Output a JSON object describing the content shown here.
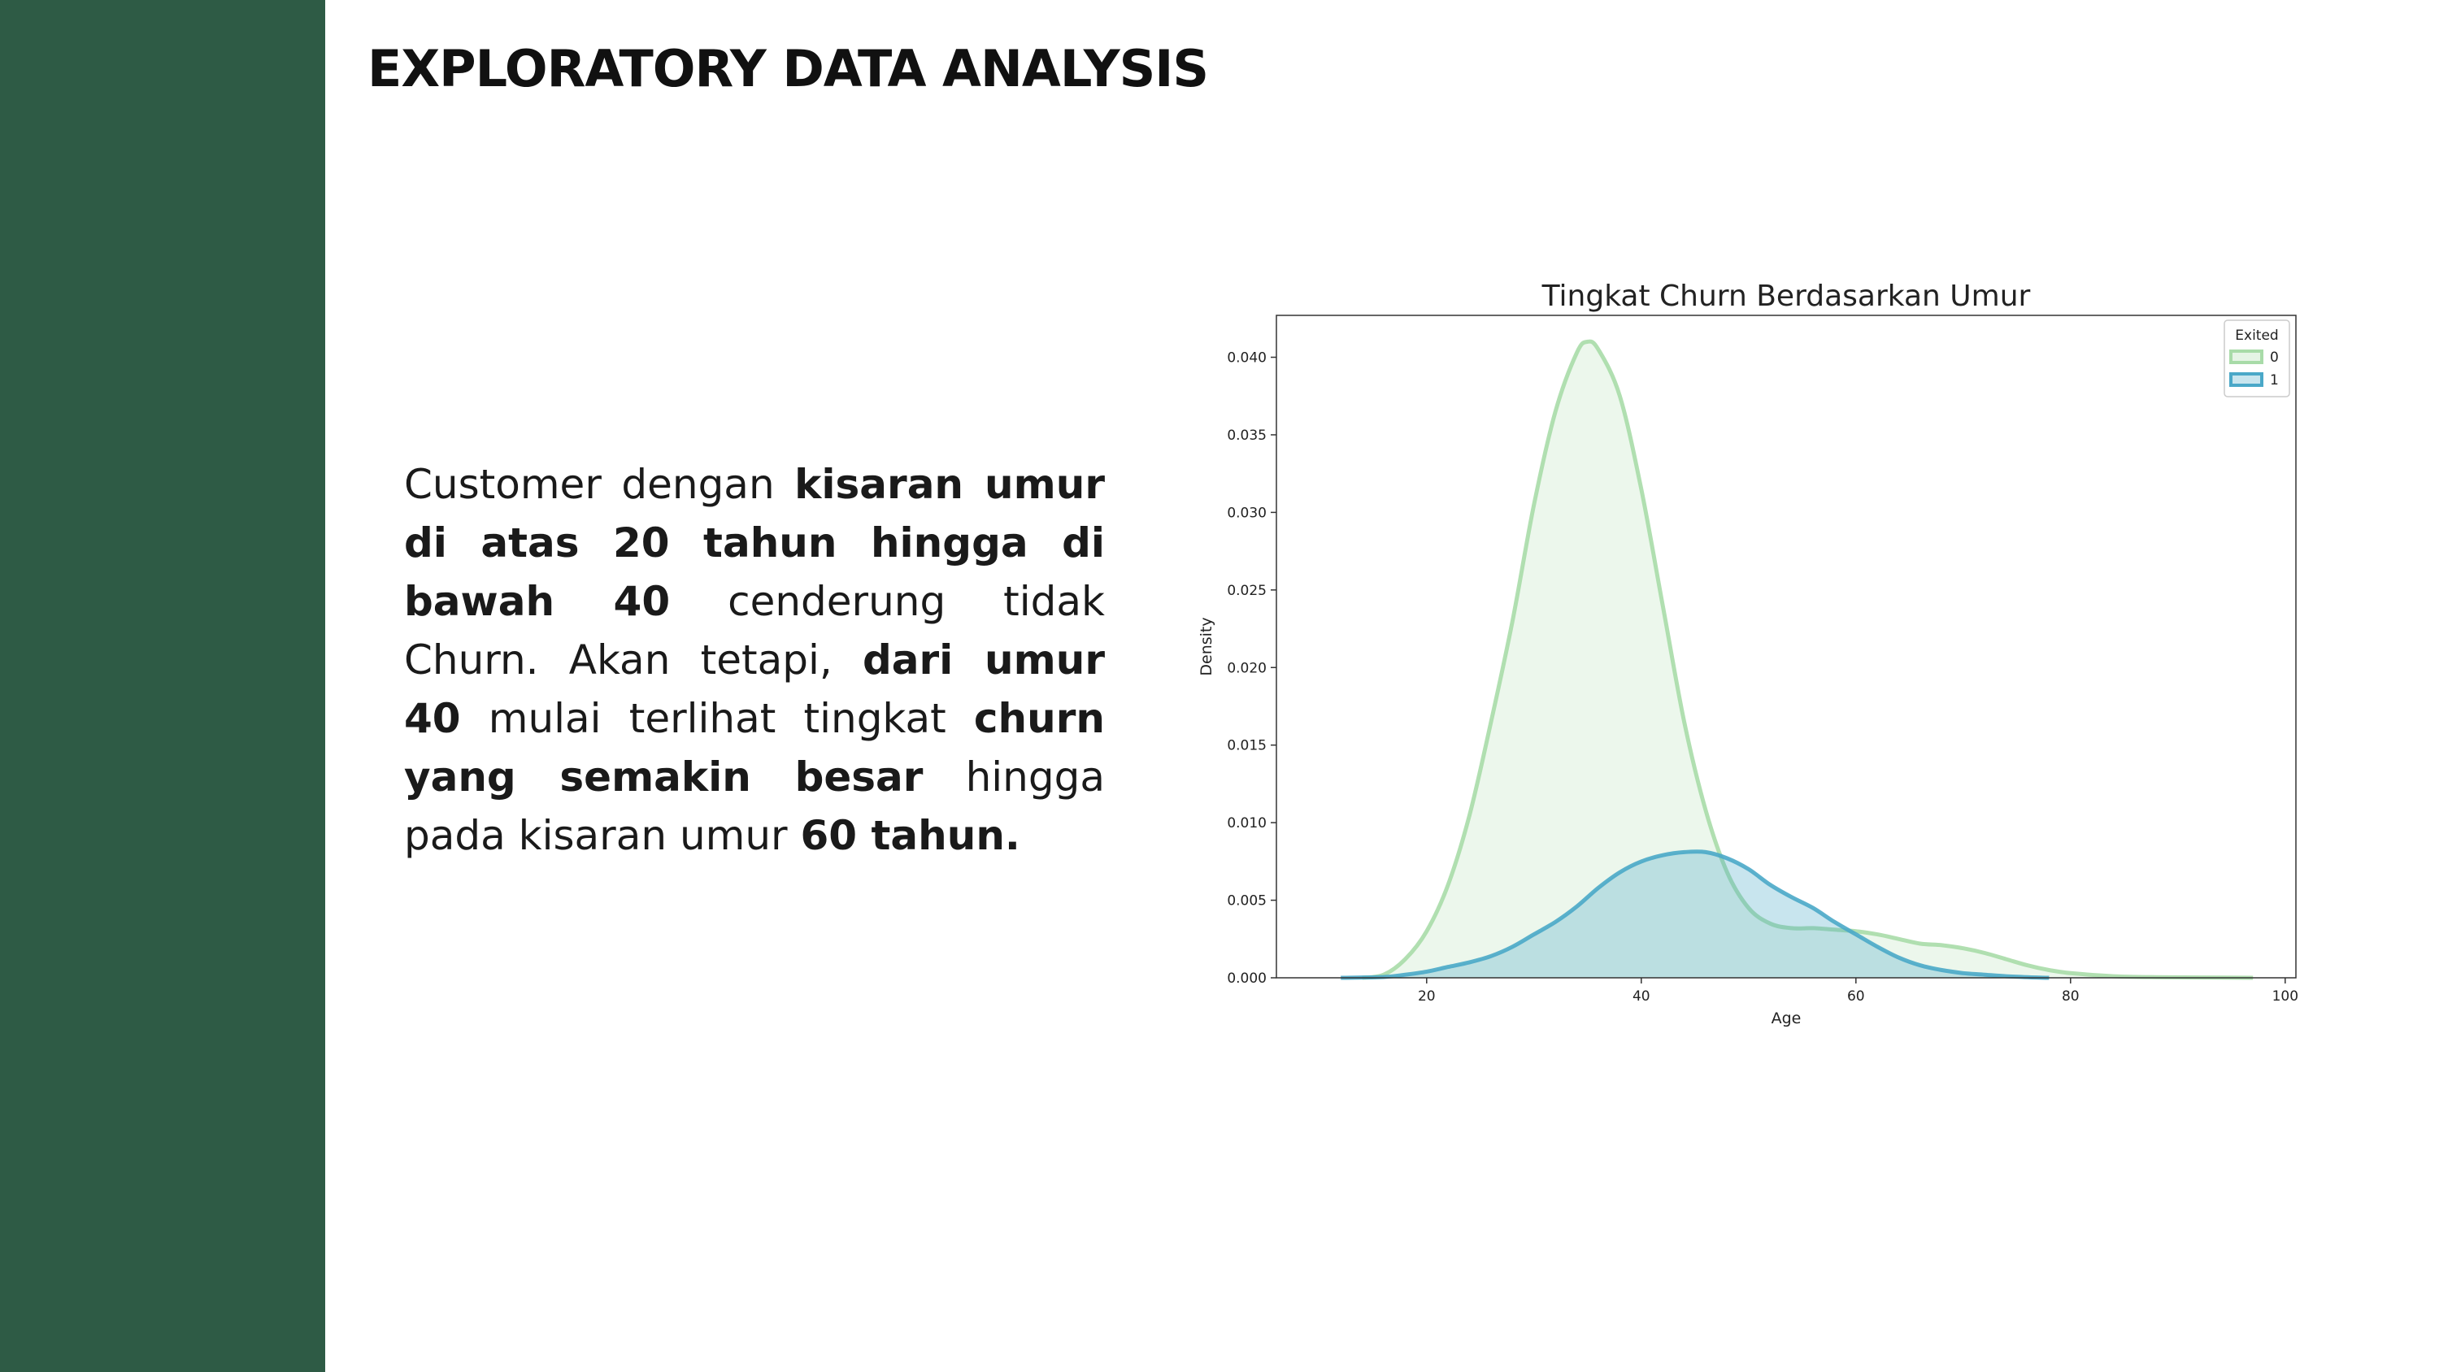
{
  "page": {
    "title": "EXPLORATORY DATA ANALYSIS",
    "sidebar_color": "#2e5b45"
  },
  "description": {
    "segments": [
      {
        "text": "Customer dengan ",
        "bold": false
      },
      {
        "text": "kisaran umur di atas 20 tahun hingga di bawah 40",
        "bold": true
      },
      {
        "text": " cenderung tidak Churn. Akan tetapi, ",
        "bold": false
      },
      {
        "text": "dari umur 40",
        "bold": true
      },
      {
        "text": " mulai terlihat tingkat ",
        "bold": false
      },
      {
        "text": "churn yang semakin besar",
        "bold": true
      },
      {
        "text": " hingga pada kisaran umur ",
        "bold": false
      },
      {
        "text": "60 tahun.",
        "bold": true
      }
    ]
  },
  "chart_data": {
    "type": "area",
    "title": "Tingkat Churn Berdasarkan Umur",
    "xlabel": "Age",
    "ylabel": "Density",
    "xlim": [
      6,
      101
    ],
    "ylim": [
      0,
      0.0427
    ],
    "xticks": [
      20,
      40,
      60,
      80,
      100
    ],
    "yticks": [
      "0.000",
      "0.005",
      "0.010",
      "0.015",
      "0.020",
      "0.025",
      "0.030",
      "0.035",
      "0.040"
    ],
    "grid": false,
    "legend": {
      "title": "Exited",
      "placement": "top-right"
    },
    "series": [
      {
        "name": "0",
        "color": "#a8dba8",
        "x": [
          14,
          16,
          18,
          20,
          22,
          24,
          26,
          28,
          30,
          32,
          34,
          35,
          36,
          38,
          40,
          42,
          44,
          46,
          48,
          50,
          52,
          54,
          56,
          58,
          60,
          62,
          64,
          66,
          68,
          70,
          72,
          74,
          76,
          78,
          80,
          84,
          88,
          92,
          97
        ],
        "y": [
          0.0,
          0.0002,
          0.0012,
          0.003,
          0.006,
          0.0105,
          0.0165,
          0.023,
          0.0305,
          0.0365,
          0.0403,
          0.041,
          0.0405,
          0.0375,
          0.0315,
          0.024,
          0.0165,
          0.0108,
          0.0068,
          0.0045,
          0.0035,
          0.0032,
          0.0032,
          0.0031,
          0.003,
          0.0028,
          0.0025,
          0.0022,
          0.0021,
          0.0019,
          0.0016,
          0.0012,
          0.0008,
          0.0005,
          0.0003,
          0.0001,
          4e-05,
          2e-05,
          0.0
        ]
      },
      {
        "name": "1",
        "color": "#4aa8c8",
        "x": [
          12,
          16,
          18,
          20,
          22,
          24,
          26,
          28,
          30,
          32,
          34,
          36,
          38,
          40,
          42,
          44,
          46,
          48,
          50,
          52,
          54,
          56,
          58,
          60,
          62,
          64,
          66,
          68,
          70,
          72,
          74,
          76,
          78
        ],
        "y": [
          0.0,
          5e-05,
          0.0002,
          0.0004,
          0.0007,
          0.001,
          0.0014,
          0.002,
          0.0028,
          0.0036,
          0.0046,
          0.0058,
          0.0068,
          0.0075,
          0.0079,
          0.0081,
          0.0081,
          0.0077,
          0.007,
          0.006,
          0.0052,
          0.0045,
          0.0036,
          0.0028,
          0.002,
          0.0013,
          0.0008,
          0.0005,
          0.0003,
          0.0002,
          0.0001,
          4e-05,
          0.0
        ]
      }
    ]
  }
}
